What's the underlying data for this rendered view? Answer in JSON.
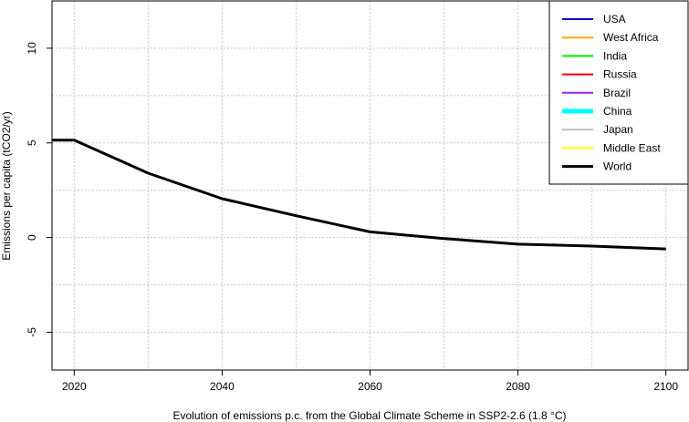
{
  "chart_data": {
    "type": "line",
    "title": "",
    "xlabel": "Evolution of  emissions  p.c. from the Global Climate Scheme in SSP2-2.6 (1.8 °C)",
    "ylabel": "Emissions per capita (tCO2/yr)",
    "xlim": [
      2017,
      2103
    ],
    "ylim": [
      -7,
      12.5
    ],
    "x_ticks": [
      2020,
      2040,
      2060,
      2080,
      2100
    ],
    "y_ticks": [
      -5,
      0,
      5,
      10
    ],
    "x_grid": [
      2020,
      2030,
      2040,
      2050,
      2060,
      2070,
      2080,
      2090,
      2100
    ],
    "y_grid": [
      -7.5,
      -5,
      -2.5,
      0,
      2.5,
      5,
      7.5,
      10,
      12.5
    ],
    "grid": true,
    "legend_position": "top-right",
    "series": [
      {
        "name": "USA",
        "color": "#0000cc",
        "width": 2,
        "x": [],
        "y": []
      },
      {
        "name": "West Africa",
        "color": "#ffa500",
        "width": 2,
        "x": [],
        "y": []
      },
      {
        "name": "India",
        "color": "#00ee00",
        "width": 2,
        "x": [],
        "y": []
      },
      {
        "name": "Russia",
        "color": "#ee0000",
        "width": 2,
        "x": [],
        "y": []
      },
      {
        "name": "Brazil",
        "color": "#a020f0",
        "width": 2,
        "x": [],
        "y": []
      },
      {
        "name": "China",
        "color": "#00ffff",
        "width": 5,
        "x": [],
        "y": []
      },
      {
        "name": "Japan",
        "color": "#bebebe",
        "width": 2,
        "x": [],
        "y": []
      },
      {
        "name": "Middle East",
        "color": "#ffff00",
        "width": 2,
        "x": [],
        "y": []
      },
      {
        "name": "World",
        "color": "#000000",
        "width": 3,
        "x": [
          2017,
          2020,
          2030,
          2040,
          2050,
          2060,
          2070,
          2080,
          2090,
          2100
        ],
        "y": [
          5.15,
          5.15,
          3.4,
          2.05,
          1.15,
          0.3,
          -0.05,
          -0.35,
          -0.45,
          -0.6
        ]
      }
    ]
  }
}
